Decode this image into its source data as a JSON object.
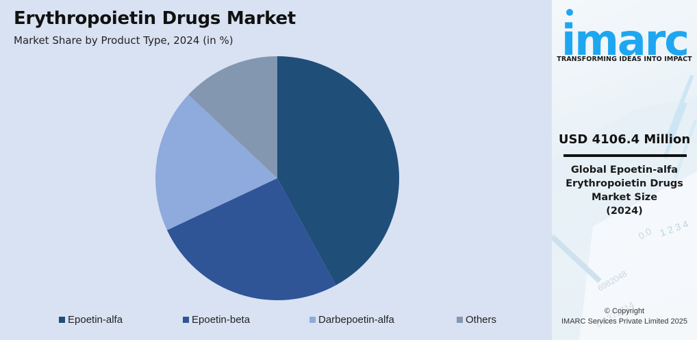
{
  "header": {
    "title": "Erythropoietin Drugs Market",
    "subtitle": "Market Share by Product Type, 2024 (in %)"
  },
  "chart_data": {
    "type": "pie",
    "title": "Erythropoietin Drugs Market",
    "subtitle": "Market Share by Product Type, 2024 (in %)",
    "categories": [
      "Epoetin-alfa",
      "Epoetin-beta",
      "Darbepoetin-alfa",
      "Others"
    ],
    "values": [
      42,
      26,
      19,
      13
    ],
    "colors": [
      "#1f4e79",
      "#2f5597",
      "#8faadc",
      "#8497b0"
    ],
    "start_angle": "12 o'clock, clockwise",
    "legend_position": "bottom",
    "data_labels": false
  },
  "legend": {
    "items": [
      {
        "label": "Epoetin-alfa",
        "color": "#1f4e79"
      },
      {
        "label": "Epoetin-beta",
        "color": "#2f5597"
      },
      {
        "label": "Darbepoetin-alfa",
        "color": "#8faadc"
      },
      {
        "label": "Others",
        "color": "#8497b0"
      }
    ]
  },
  "sidebar": {
    "logo_text": "imarc",
    "logo_color": "#1ea7f0",
    "tagline": "TRANSFORMING IDEAS INTO IMPACT",
    "value": "USD 4106.4 Million",
    "desc_lines": [
      "Global Epoetin-alfa",
      "Erythropoietin Drugs",
      "Market Size",
      "(2024)"
    ],
    "copyright_line1": "© Copyright",
    "copyright_line2": "IMARC Services Private Limited 2025"
  }
}
